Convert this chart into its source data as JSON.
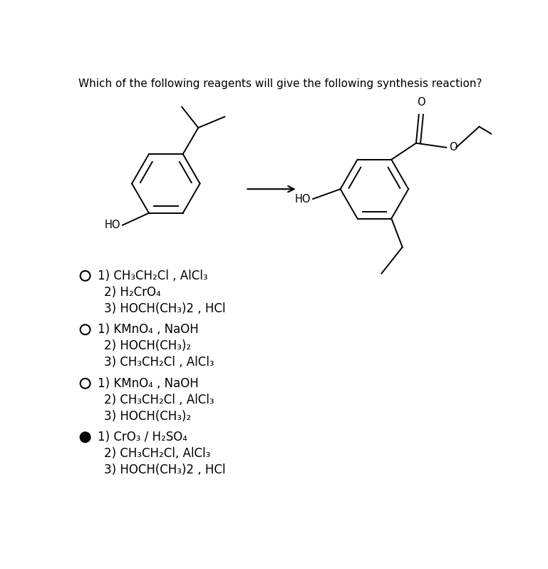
{
  "title": "Which of the following reagents will give the following synthesis reaction?",
  "title_fontsize": 11,
  "bg_color": "#ffffff",
  "text_color": "#000000",
  "options": [
    {
      "selected": false,
      "lines": [
        "1) CH₃CH₂Cl , AlCl₃",
        "2) H₂CrO₄",
        "3) HOCH(CH₃)2 , HCl"
      ]
    },
    {
      "selected": false,
      "lines": [
        "1) KMnO₄ , NaOH",
        "2) HOCH(CH₃)₂",
        "3) CH₃CH₂Cl , AlCl₃"
      ]
    },
    {
      "selected": false,
      "lines": [
        "1) KMnO₄ , NaOH",
        "2) CH₃CH₂Cl , AlCl₃",
        "3) HOCH(CH₃)₂"
      ]
    },
    {
      "selected": true,
      "lines": [
        "1) CrO₃ / H₂SO₄",
        "2) CH₃CH₂Cl, AlCl₃",
        "3) HOCH(CH₃)2 , HCl"
      ]
    }
  ],
  "font_size_options": 12
}
